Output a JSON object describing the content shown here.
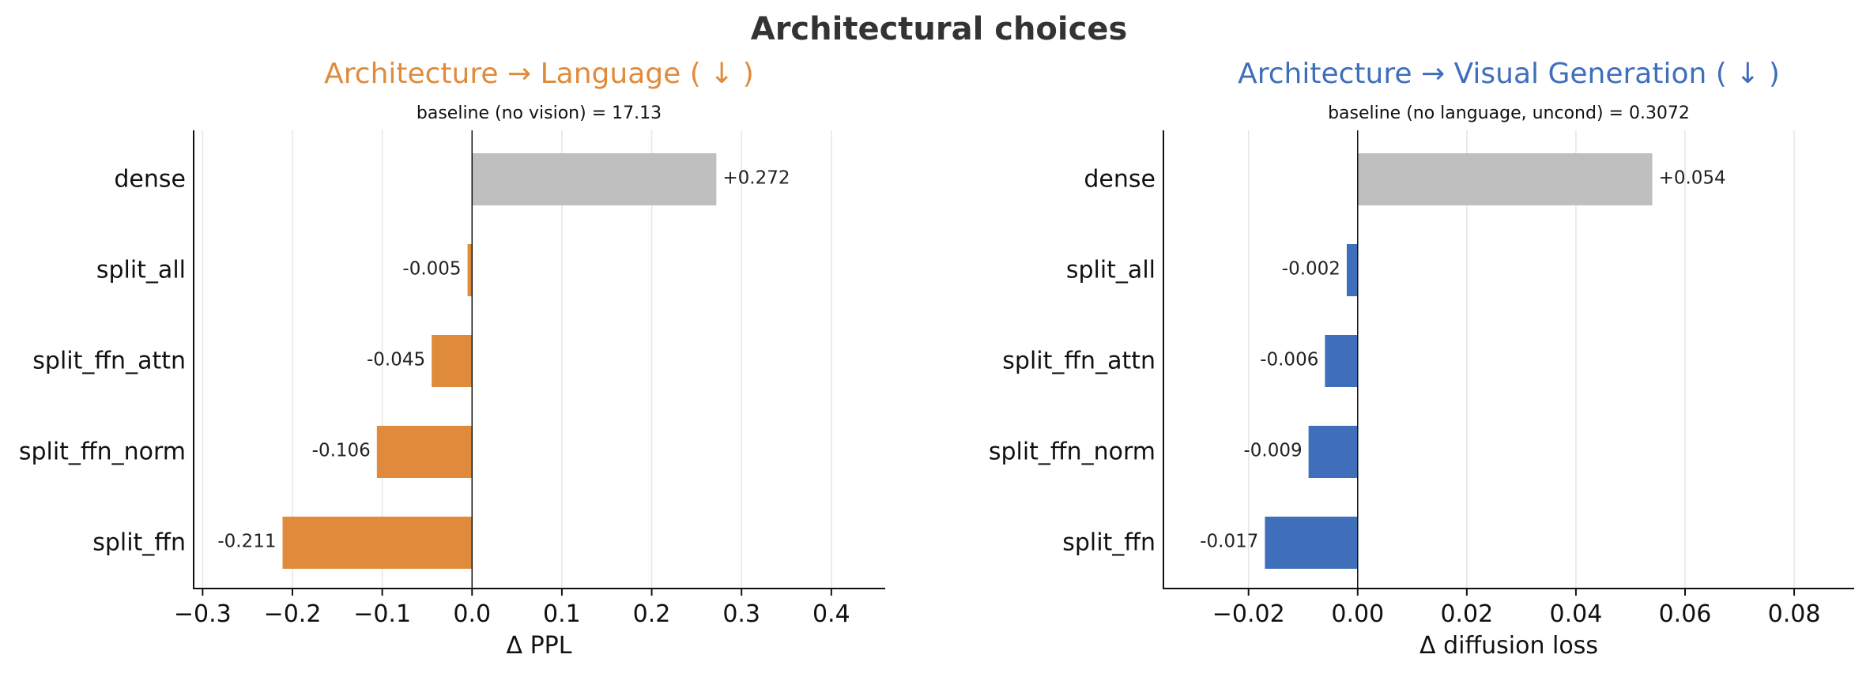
{
  "figure": {
    "title": "Architectural choices"
  },
  "colors": {
    "grey": "#bfbfbf",
    "orange": "#e08b3b",
    "blue": "#3f6fba",
    "title": "#333333"
  },
  "chart_data": [
    {
      "type": "bar",
      "orientation": "horizontal",
      "title": "Architecture  →  Language ( ↓ )",
      "title_color": "#e08b3b",
      "subtitle": "baseline (no vision) = 17.13",
      "xlabel": "Δ PPL",
      "ylabel": "",
      "xlim": [
        -0.31,
        0.46
      ],
      "xticks": [
        -0.3,
        -0.2,
        -0.1,
        0.0,
        0.1,
        0.2,
        0.3,
        0.4
      ],
      "xtick_labels": [
        "−0.3",
        "−0.2",
        "−0.1",
        "0.0",
        "0.1",
        "0.2",
        "0.3",
        "0.4"
      ],
      "grid": "x",
      "categories": [
        "dense",
        "split_all",
        "split_ffn_attn",
        "split_ffn_norm",
        "split_ffn"
      ],
      "values": [
        0.272,
        -0.005,
        -0.045,
        -0.106,
        -0.211
      ],
      "value_labels": [
        "+0.272",
        "-0.005",
        "-0.045",
        "-0.106",
        "-0.211"
      ],
      "bar_colors": [
        "#bfbfbf",
        "#e08b3b",
        "#e08b3b",
        "#e08b3b",
        "#e08b3b"
      ]
    },
    {
      "type": "bar",
      "orientation": "horizontal",
      "title": "Architecture  →  Visual Generation ( ↓ )",
      "title_color": "#3f6fba",
      "subtitle": "baseline (no language, uncond) = 0.3072",
      "xlabel": "Δ diffusion loss",
      "ylabel": "",
      "xlim": [
        -0.0356,
        0.091
      ],
      "xticks": [
        -0.02,
        0.0,
        0.02,
        0.04,
        0.06,
        0.08
      ],
      "xtick_labels": [
        "−0.02",
        "0.00",
        "0.02",
        "0.04",
        "0.06",
        "0.08"
      ],
      "grid": "x",
      "categories": [
        "dense",
        "split_all",
        "split_ffn_attn",
        "split_ffn_norm",
        "split_ffn"
      ],
      "values": [
        0.054,
        -0.002,
        -0.006,
        -0.009,
        -0.017
      ],
      "value_labels": [
        "+0.054",
        "-0.002",
        "-0.006",
        "-0.009",
        "-0.017"
      ],
      "bar_colors": [
        "#bfbfbf",
        "#3f6fba",
        "#3f6fba",
        "#3f6fba",
        "#3f6fba"
      ]
    }
  ]
}
